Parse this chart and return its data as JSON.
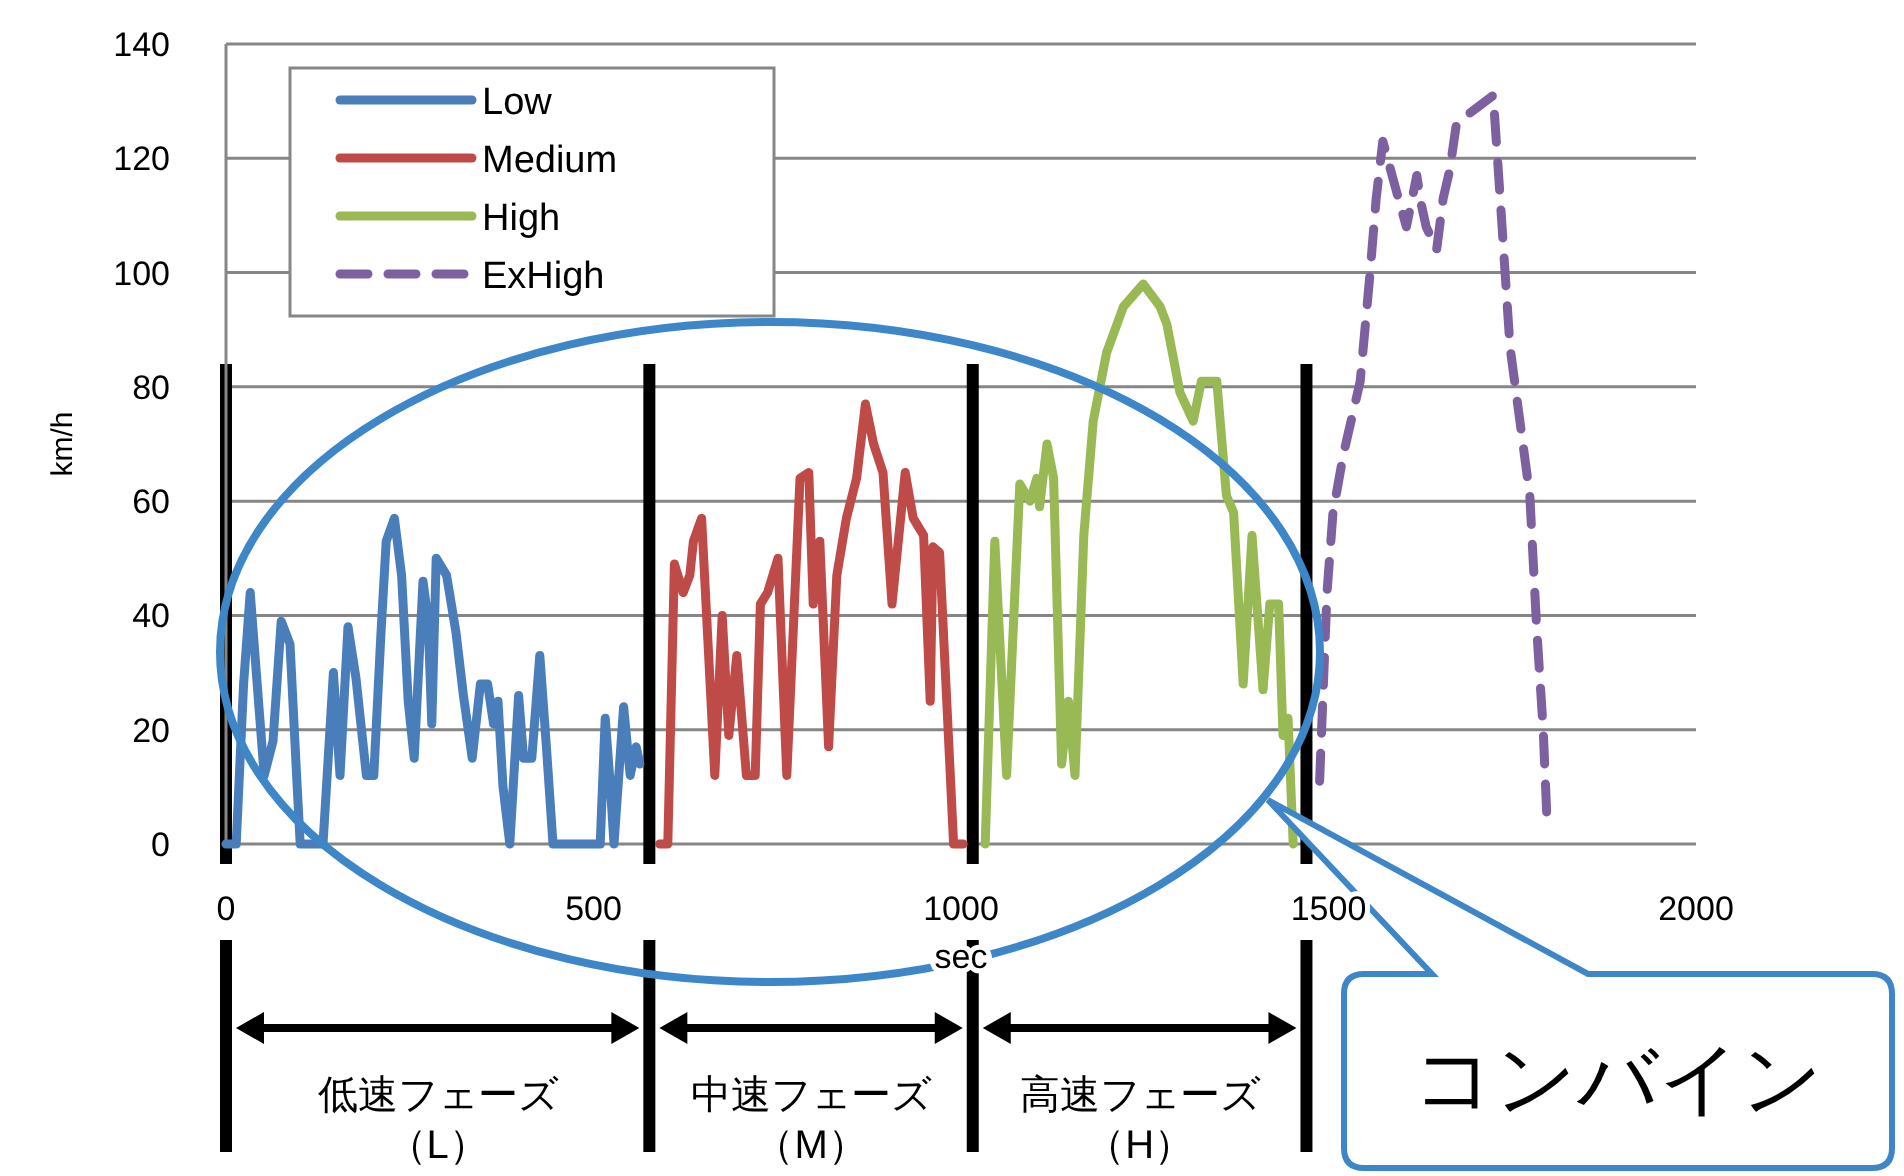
{
  "chart_data": {
    "type": "line",
    "xlabel": "sec",
    "ylabel": "km/h",
    "xlim": [
      0,
      2000
    ],
    "ylim": [
      0,
      140
    ],
    "xticks": [
      0,
      500,
      1000,
      1500,
      2000
    ],
    "yticks": [
      0,
      20,
      40,
      60,
      80,
      100,
      120,
      140
    ],
    "grid": "y",
    "legend": "top left",
    "line_style": "solid",
    "series": [
      {
        "name": "Low",
        "color": "#4a7ebb",
        "x": [
          0,
          14,
          24,
          33,
          46,
          52,
          64,
          75,
          87,
          96,
          101,
          132,
          146,
          155,
          166,
          177,
          191,
          201,
          211,
          218,
          229,
          239,
          248,
          256,
          268,
          275,
          280,
          286,
          300,
          313,
          323,
          335,
          346,
          356,
          364,
          370,
          377,
          386,
          398,
          405,
          416,
          427,
          436,
          445,
          509,
          516,
          523,
          528,
          541,
          550,
          558,
          563
        ],
        "values": [
          0,
          0,
          28,
          44,
          22,
          12,
          18,
          39,
          35,
          12,
          0,
          0,
          30,
          12,
          38,
          29,
          12,
          12,
          37,
          53,
          57,
          47,
          25,
          15,
          46,
          39,
          21,
          50,
          47,
          37,
          26,
          15,
          28,
          28,
          21,
          25,
          10,
          0,
          26,
          15,
          15,
          33,
          17,
          0,
          0,
          22,
          10,
          0,
          24,
          12,
          17,
          14
        ]
      },
      {
        "name": "Medium",
        "color": "#be4b48",
        "x": [
          590,
          601,
          610,
          622,
          631,
          636,
          647,
          654,
          665,
          675,
          684,
          695,
          708,
          720,
          727,
          737,
          751,
          763,
          781,
          793,
          799,
          808,
          820,
          831,
          844,
          858,
          870,
          881,
          894,
          906,
          924,
          935,
          949,
          958,
          962,
          971,
          990,
          1003
        ],
        "values": [
          0,
          0,
          49,
          44,
          47,
          53,
          57,
          40,
          12,
          40,
          19,
          33,
          12,
          12,
          42,
          44,
          50,
          12,
          64,
          65,
          42,
          53,
          17,
          47,
          57,
          64,
          77,
          70,
          65,
          42,
          65,
          57,
          54,
          25,
          52,
          51,
          0,
          0
        ]
      },
      {
        "name": "High",
        "color": "#98b954",
        "x": [
          1033,
          1046,
          1062,
          1080,
          1094,
          1103,
          1107,
          1117,
          1126,
          1137,
          1146,
          1155,
          1167,
          1180,
          1198,
          1221,
          1248,
          1271,
          1280,
          1298,
          1316,
          1327,
          1348,
          1361,
          1371,
          1384,
          1396,
          1411,
          1420,
          1432,
          1438,
          1445,
          1452
        ],
        "values": [
          0,
          53,
          12,
          63,
          60,
          64,
          59,
          70,
          64,
          14,
          25,
          12,
          54,
          74,
          86,
          94,
          98,
          94,
          91,
          79,
          74,
          81,
          81,
          61,
          58,
          28,
          54,
          27,
          42,
          42,
          19,
          22,
          0
        ]
      },
      {
        "name": "ExHigh",
        "color": "#7d60a0",
        "line_style": "dashed",
        "x": [
          1488,
          1498,
          1506,
          1520,
          1527,
          1543,
          1556,
          1565,
          1574,
          1593,
          1606,
          1620,
          1626,
          1633,
          1647,
          1656,
          1665,
          1674,
          1693,
          1724,
          1733,
          1747,
          1774,
          1783,
          1792,
          1797
        ],
        "values": [
          11,
          44,
          58,
          68,
          72,
          81,
          99,
          113,
          123,
          114,
          108,
          117,
          112,
          108,
          104,
          113,
          118,
          126,
          128,
          131,
          114,
          87,
          61,
          38,
          20,
          5
        ]
      }
    ],
    "ref_lines": [
      {
        "axis": "x",
        "value": 0,
        "color": "#000000"
      },
      {
        "axis": "x",
        "value": 576,
        "color": "#000000"
      },
      {
        "axis": "x",
        "value": 1016,
        "color": "#000000"
      },
      {
        "axis": "x",
        "value": 1470,
        "color": "#000000"
      }
    ],
    "annotations": [
      "低速フェーズ",
      "（L）",
      "中速フェーズ",
      "（M）",
      "高速フェーズ",
      "（H）",
      "コンバイン"
    ]
  }
}
